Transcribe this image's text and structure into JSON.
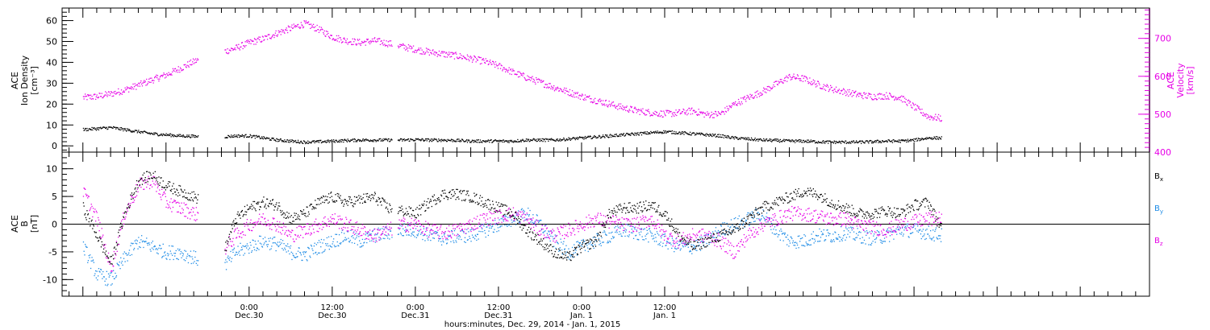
{
  "chart_data": [
    {
      "type": "scatter",
      "panel": "top",
      "ylabel_left_lines": [
        "ACE",
        "Ion Density",
        "[cm⁻³]"
      ],
      "ylabel_right_lines": [
        "ACE",
        "Velocity",
        "[km/s]"
      ],
      "ylim_left": [
        -3,
        66
      ],
      "ylim_right": [
        400,
        780
      ],
      "yticks_left": [
        "0",
        "10",
        "20",
        "30",
        "40",
        "50",
        "60"
      ],
      "yticks_left_values": [
        0,
        10,
        20,
        30,
        40,
        50,
        60
      ],
      "yticks_right": [
        "400",
        "500",
        "600",
        "700"
      ],
      "yticks_right_values": [
        400,
        500,
        600,
        700
      ],
      "series": [
        {
          "axis": "right",
          "color": "#e600e6",
          "x": [
            -24,
            -22,
            -20,
            -18,
            -16,
            -14,
            -12,
            -10,
            -8,
            -6,
            -4,
            -2,
            0,
            2,
            4,
            6,
            8,
            10,
            12,
            14,
            16,
            18,
            20,
            22,
            24,
            26,
            28,
            30,
            32,
            34,
            36,
            38,
            40,
            42,
            44,
            46,
            48,
            50,
            52,
            54,
            56,
            58,
            60,
            62,
            64,
            66,
            68,
            70,
            72,
            74,
            76,
            78,
            80,
            82,
            84,
            86,
            88,
            90,
            92,
            94,
            96,
            98,
            100
          ],
          "y": [
            545,
            548,
            555,
            565,
            578,
            592,
            605,
            622,
            640,
            655,
            665,
            675,
            690,
            700,
            715,
            728,
            740,
            725,
            705,
            695,
            690,
            695,
            688,
            680,
            672,
            665,
            660,
            655,
            648,
            640,
            628,
            612,
            598,
            585,
            572,
            560,
            548,
            538,
            528,
            518,
            510,
            505,
            502,
            505,
            510,
            500,
            502,
            528,
            545,
            560,
            580,
            600,
            595,
            580,
            568,
            560,
            552,
            548,
            550,
            545,
            520,
            495,
            490
          ]
        },
        {
          "axis": "left",
          "color": "#000000",
          "x": [
            -24,
            -22,
            -20,
            -18,
            -16,
            -14,
            -12,
            -10,
            -8,
            -6,
            -4,
            -2,
            0,
            2,
            4,
            6,
            8,
            10,
            12,
            14,
            16,
            18,
            20,
            22,
            24,
            26,
            28,
            30,
            32,
            34,
            36,
            38,
            40,
            42,
            44,
            46,
            48,
            50,
            52,
            54,
            56,
            58,
            60,
            62,
            64,
            66,
            68,
            70,
            72,
            74,
            76,
            78,
            80,
            82,
            84,
            86,
            88,
            90,
            92,
            94,
            96,
            98,
            100
          ],
          "y": [
            8,
            8.5,
            9,
            8,
            7,
            6,
            5.5,
            5,
            4.8,
            4.5,
            4.5,
            5,
            5,
            4,
            3,
            2.5,
            2,
            2.2,
            2.5,
            2.8,
            3,
            3,
            3,
            3,
            3.2,
            3,
            3,
            2.8,
            2.5,
            2.5,
            2.5,
            2.5,
            3,
            3,
            3,
            3.5,
            4,
            4.5,
            5,
            5.5,
            6,
            6.5,
            7,
            6.5,
            6,
            5.5,
            5,
            4,
            3.5,
            3,
            2.8,
            2.5,
            2.5,
            2.2,
            2,
            2,
            2,
            2.2,
            2.5,
            2.5,
            3,
            4,
            4
          ]
        }
      ]
    },
    {
      "type": "scatter",
      "panel": "bottom",
      "ylabel_left_lines": [
        "ACE",
        "B",
        "[nT]"
      ],
      "ylim": [
        -13,
        13
      ],
      "yticks": [
        "-10",
        "-5",
        "0",
        "5",
        "10"
      ],
      "yticks_values": [
        -10,
        -5,
        0,
        5,
        10
      ],
      "legend_placement": "right",
      "legend": [
        {
          "base": "B",
          "sub": "x",
          "color": "#000000"
        },
        {
          "base": "B",
          "sub": "y",
          "color": "#1e8ce6"
        },
        {
          "base": "B",
          "sub": "z",
          "color": "#e600e6"
        }
      ],
      "series": [
        {
          "name_base": "B",
          "name_sub": "x",
          "color": "#000000",
          "x": [
            -24,
            -22,
            -20,
            -18,
            -16,
            -14,
            -12,
            -10,
            -8,
            -6,
            -4,
            -2,
            0,
            2,
            4,
            6,
            8,
            10,
            12,
            14,
            16,
            18,
            20,
            22,
            24,
            26,
            28,
            30,
            32,
            34,
            36,
            38,
            40,
            42,
            44,
            46,
            48,
            50,
            52,
            54,
            56,
            58,
            60,
            62,
            64,
            66,
            68,
            70,
            72,
            74,
            76,
            78,
            80,
            82,
            84,
            86,
            88,
            90,
            92,
            94,
            96,
            98,
            100
          ],
          "y": [
            3,
            -2,
            -7,
            2,
            8,
            9,
            7,
            6,
            5,
            4,
            -6,
            1,
            3,
            4,
            3.5,
            1,
            2,
            4,
            5,
            4,
            4.5,
            5,
            3,
            2.5,
            2,
            4,
            5.5,
            5.5,
            5,
            4,
            3,
            2,
            -1,
            -3,
            -5,
            -6,
            -4,
            -3,
            2,
            3,
            3,
            3.5,
            2,
            -2,
            -4,
            -3,
            -2,
            -1,
            1,
            3,
            4,
            5,
            6,
            5.5,
            4,
            3,
            2,
            2,
            2.5,
            2,
            3.5,
            4,
            -1
          ]
        },
        {
          "name_base": "B",
          "name_sub": "y",
          "color": "#1e8ce6",
          "x": [
            -24,
            -22,
            -20,
            -18,
            -16,
            -14,
            -12,
            -10,
            -8,
            -6,
            -4,
            -2,
            0,
            2,
            4,
            6,
            8,
            10,
            12,
            14,
            16,
            18,
            20,
            22,
            24,
            26,
            28,
            30,
            32,
            34,
            36,
            38,
            40,
            42,
            44,
            46,
            48,
            50,
            52,
            54,
            56,
            58,
            60,
            62,
            64,
            66,
            68,
            70,
            72,
            74,
            76,
            78,
            80,
            82,
            84,
            86,
            88,
            90,
            92,
            94,
            96,
            98,
            100
          ],
          "y": [
            -4,
            -9,
            -10,
            -6,
            -3,
            -4,
            -5,
            -5,
            -6,
            -7,
            -8,
            -5,
            -4,
            -3,
            -3.5,
            -5,
            -5.5,
            -4,
            -3,
            -2,
            -3,
            -2,
            -1.5,
            -1,
            -1,
            -2,
            -2.5,
            -2,
            -2,
            -1,
            0,
            1,
            2,
            0,
            -3,
            -5,
            -4,
            -3,
            -2,
            -1,
            -1.5,
            -2,
            -3,
            -4,
            -4,
            -3,
            -1,
            0,
            1,
            2,
            -1,
            -3,
            -3,
            -2,
            -2,
            -1.5,
            -2,
            -2.5,
            -2,
            -1,
            -1,
            -1.5,
            -2
          ]
        },
        {
          "name_base": "B",
          "name_sub": "z",
          "color": "#e600e6",
          "x": [
            -24,
            -22,
            -20,
            -18,
            -16,
            -14,
            -12,
            -10,
            -8,
            -6,
            -4,
            -2,
            0,
            2,
            4,
            6,
            8,
            10,
            12,
            14,
            16,
            18,
            20,
            22,
            24,
            26,
            28,
            30,
            32,
            34,
            36,
            38,
            40,
            42,
            44,
            46,
            48,
            50,
            52,
            54,
            56,
            58,
            60,
            62,
            64,
            66,
            68,
            70,
            72,
            74,
            76,
            78,
            80,
            82,
            84,
            86,
            88,
            90,
            92,
            94,
            96,
            98,
            100
          ],
          "y": [
            6,
            1,
            -8,
            2,
            7,
            8,
            4,
            3,
            2,
            1,
            -5,
            -2,
            0,
            1,
            0,
            -2,
            -1,
            0,
            1,
            0,
            -1,
            -2,
            -1,
            0,
            0,
            -1,
            -1.5,
            -1,
            0,
            1,
            1.5,
            2,
            1,
            -1,
            -2,
            -1,
            0,
            1,
            0.5,
            0,
            0,
            1,
            -2,
            -3,
            -2,
            -2,
            -3,
            -5,
            -2,
            0,
            1,
            2,
            2,
            1.5,
            1,
            1,
            0,
            -0.5,
            -1,
            0,
            0.5,
            1,
            1
          ]
        }
      ]
    }
  ],
  "x_axis": {
    "xlim": [
      -27,
      130
    ],
    "major_labels": [
      {
        "x": 0,
        "time": "0:00",
        "date": "Dec.30"
      },
      {
        "x": 12,
        "time": "12:00",
        "date": "Dec.30"
      },
      {
        "x": 24,
        "time": "0:00",
        "date": "Dec.31"
      },
      {
        "x": 36,
        "time": "12:00",
        "date": "Dec.31"
      },
      {
        "x": 48,
        "time": "0:00",
        "date": "Jan. 1"
      },
      {
        "x": 60,
        "time": "12:00",
        "date": "Jan. 1"
      }
    ],
    "xlabel": "hours:minutes, Dec. 29, 2014 - Jan.  1, 2015"
  }
}
